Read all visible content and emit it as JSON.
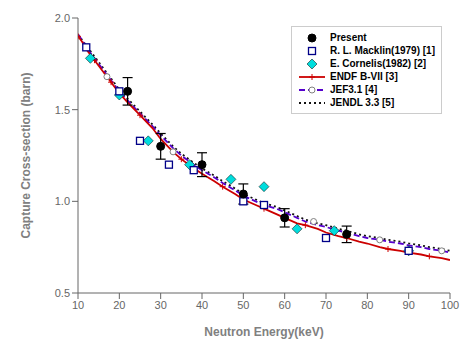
{
  "chart_data": {
    "type": "line",
    "xlabel": "Neutron Energy(keV)",
    "ylabel": "Capture Cross-section (barn)",
    "xlim": [
      10,
      100
    ],
    "ylim": [
      0.5,
      2.0
    ],
    "xticks": [
      10,
      20,
      30,
      40,
      50,
      60,
      70,
      80,
      90,
      100
    ],
    "yticks": [
      0.5,
      {
        "value": 1.0,
        "label": "1.0"
      },
      1.5,
      {
        "value": 2.0,
        "label": "2.0"
      }
    ],
    "legend": "upper right",
    "series": [
      {
        "name": "Present",
        "type": "scatter",
        "marker": "circle",
        "color": "#000000",
        "x": [
          22,
          30,
          40,
          50,
          60,
          75
        ],
        "values": [
          1.6,
          1.3,
          1.2,
          1.04,
          0.91,
          0.82
        ],
        "error": [
          0.075,
          0.07,
          0.065,
          0.055,
          0.05,
          0.045
        ]
      },
      {
        "name": "R. L. Macklin(1979) [1]",
        "type": "scatter",
        "marker": "open_square",
        "color": "#000088",
        "x": [
          12,
          20,
          25,
          32,
          38,
          50,
          55,
          70,
          90
        ],
        "values": [
          1.84,
          1.6,
          1.33,
          1.2,
          1.17,
          1.0,
          0.98,
          0.8,
          0.73
        ]
      },
      {
        "name": "E. Cornelis(1982) [2]",
        "type": "scatter",
        "marker": "diamond",
        "color": "#00dddd",
        "x": [
          13,
          20,
          27,
          37,
          47,
          55,
          63,
          72,
          90
        ],
        "values": [
          1.78,
          1.58,
          1.33,
          1.2,
          1.12,
          1.08,
          0.85,
          0.84,
          0.73
        ]
      },
      {
        "name": "ENDF B-VII [3]",
        "type": "line",
        "line_style": "solid",
        "marker": "plus",
        "color": "#cc0000",
        "x": [
          10,
          11,
          12,
          13,
          14,
          15,
          16,
          17,
          18,
          19,
          20,
          22,
          25,
          28,
          30,
          33,
          35,
          38,
          40,
          43,
          45,
          48,
          50,
          53,
          55,
          58,
          60,
          63,
          65,
          68,
          70,
          73,
          75,
          78,
          80,
          83,
          85,
          88,
          90,
          93,
          95,
          98,
          100
        ],
        "values": [
          1.9,
          1.87,
          1.83,
          1.8,
          1.77,
          1.74,
          1.71,
          1.68,
          1.65,
          1.62,
          1.59,
          1.54,
          1.47,
          1.4,
          1.34,
          1.27,
          1.23,
          1.18,
          1.15,
          1.11,
          1.08,
          1.04,
          1.01,
          0.98,
          0.96,
          0.93,
          0.91,
          0.88,
          0.87,
          0.85,
          0.83,
          0.81,
          0.8,
          0.78,
          0.77,
          0.75,
          0.74,
          0.73,
          0.72,
          0.71,
          0.7,
          0.69,
          0.68
        ]
      },
      {
        "name": "JEF3.1 [4]",
        "type": "line",
        "line_style": "dashed",
        "color": "#5500cc",
        "x": [
          10,
          11,
          12,
          13,
          14,
          15,
          16,
          17,
          18,
          19,
          20,
          22,
          25,
          28,
          30,
          33,
          35,
          38,
          40,
          43,
          45,
          48,
          50,
          53,
          55,
          58,
          60,
          63,
          65,
          68,
          70,
          73,
          75,
          78,
          80,
          83,
          85,
          88,
          90,
          93,
          95,
          98,
          100
        ],
        "values": [
          1.91,
          1.88,
          1.84,
          1.81,
          1.78,
          1.75,
          1.72,
          1.69,
          1.66,
          1.63,
          1.6,
          1.55,
          1.48,
          1.41,
          1.36,
          1.29,
          1.25,
          1.2,
          1.17,
          1.13,
          1.1,
          1.06,
          1.03,
          1.0,
          0.98,
          0.96,
          0.94,
          0.91,
          0.89,
          0.87,
          0.86,
          0.84,
          0.83,
          0.81,
          0.8,
          0.79,
          0.78,
          0.77,
          0.76,
          0.75,
          0.74,
          0.73,
          0.72
        ],
        "markers": {
          "marker": "open_circle",
          "color": "#808080",
          "x": [
            17,
            33,
            50,
            67,
            83,
            98
          ],
          "values": [
            1.68,
            1.27,
            1.03,
            0.89,
            0.79,
            0.73
          ]
        }
      },
      {
        "name": "JENDL 3.3 [5]",
        "type": "line",
        "line_style": "dotted",
        "color": "#111111",
        "x": [
          10,
          11,
          12,
          13,
          14,
          15,
          16,
          17,
          18,
          19,
          20,
          22,
          25,
          28,
          30,
          33,
          35,
          38,
          40,
          43,
          45,
          48,
          50,
          53,
          55,
          58,
          60,
          63,
          65,
          68,
          70,
          73,
          75,
          78,
          80,
          83,
          85,
          88,
          90,
          93,
          95,
          98,
          100
        ],
        "values": [
          1.91,
          1.88,
          1.85,
          1.82,
          1.79,
          1.76,
          1.73,
          1.7,
          1.67,
          1.64,
          1.61,
          1.56,
          1.49,
          1.42,
          1.37,
          1.3,
          1.26,
          1.21,
          1.18,
          1.14,
          1.11,
          1.07,
          1.04,
          1.01,
          0.99,
          0.97,
          0.95,
          0.92,
          0.9,
          0.88,
          0.87,
          0.85,
          0.84,
          0.82,
          0.81,
          0.8,
          0.79,
          0.78,
          0.77,
          0.76,
          0.75,
          0.74,
          0.73
        ]
      }
    ]
  }
}
